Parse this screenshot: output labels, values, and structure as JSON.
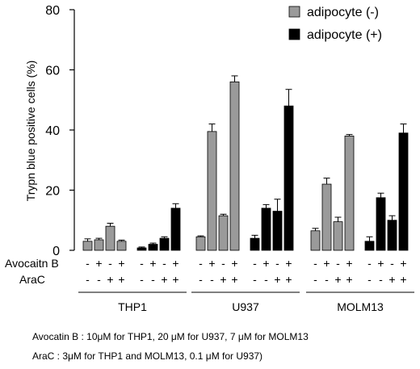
{
  "chart_data": {
    "type": "bar",
    "ylabel": "Trypn blue positive cells  (%)",
    "ylim": [
      0,
      80
    ],
    "yticks": [
      0,
      20,
      40,
      60,
      80
    ],
    "grid": false,
    "legend_position": "top-right",
    "series_colors": {
      "adipocyte (-)": "#9a9a9a",
      "adipocyte (+)": "#000000"
    },
    "row_labels": [
      "Avocaitn B",
      "AraC"
    ],
    "condition_marks": {
      "avocatin_b": [
        "-",
        "+",
        "-",
        "+"
      ],
      "arac": [
        "-",
        "-",
        "+",
        "+"
      ]
    },
    "groups": [
      {
        "name": "THP1",
        "series": [
          {
            "name": "adipocyte (-)",
            "values": [
              3,
              3.5,
              8,
              3
            ],
            "errors": [
              0.8,
              0.5,
              1.0,
              0.4
            ]
          },
          {
            "name": "adipocyte (+)",
            "values": [
              0.8,
              2,
              4,
              14
            ],
            "errors": [
              0.3,
              0.4,
              0.5,
              1.5
            ]
          }
        ]
      },
      {
        "name": "U937",
        "series": [
          {
            "name": "adipocyte (-)",
            "values": [
              4.5,
              39.5,
              11.5,
              56
            ],
            "errors": [
              0.3,
              2.5,
              0.5,
              2.0
            ]
          },
          {
            "name": "adipocyte (+)",
            "values": [
              4,
              14,
              13,
              48
            ],
            "errors": [
              1.0,
              1.2,
              4.0,
              5.5
            ]
          }
        ]
      },
      {
        "name": "MOLM13",
        "series": [
          {
            "name": "adipocyte (-)",
            "values": [
              6.5,
              22,
              9.5,
              38
            ],
            "errors": [
              0.8,
              2.0,
              1.5,
              0.5
            ]
          },
          {
            "name": "adipocyte (+)",
            "values": [
              3,
              17.5,
              10,
              39
            ],
            "errors": [
              1.5,
              1.5,
              1.5,
              3.0
            ]
          }
        ]
      }
    ]
  },
  "footnotes": {
    "line1": "Avocatin B : 10μM for THP1,  20 μM for U937,  7 μM for MOLM13",
    "line2": "AraC : 3μM for THP1 and MOLM13, 0.1 μM for U937)"
  }
}
